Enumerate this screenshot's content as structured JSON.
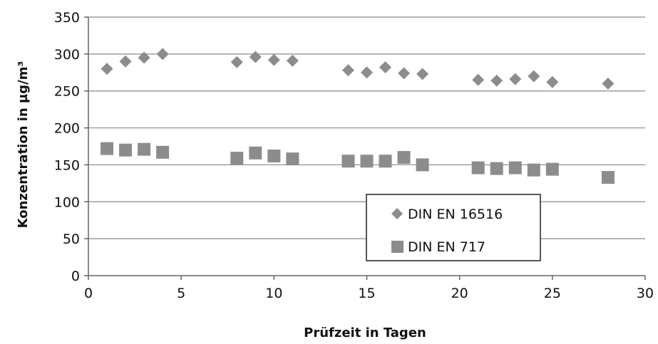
{
  "chart_data": {
    "type": "scatter",
    "title": "",
    "xlabel": "Prüfzeit in Tagen",
    "ylabel": "Konzentration in µg/m³",
    "xlim": [
      0,
      30
    ],
    "ylim": [
      0,
      350
    ],
    "xticks": [
      0,
      5,
      10,
      15,
      20,
      25,
      30
    ],
    "yticks": [
      0,
      50,
      100,
      150,
      200,
      250,
      300,
      350
    ],
    "grid": "horizontal",
    "legend_position": "lower-right",
    "series": [
      {
        "name": "DIN EN 16516",
        "marker": "diamond",
        "color": "#8c8c8c",
        "x": [
          1,
          2,
          3,
          4,
          8,
          9,
          10,
          11,
          14,
          15,
          16,
          17,
          18,
          21,
          22,
          23,
          24,
          25,
          28
        ],
        "y": [
          280,
          290,
          295,
          300,
          289,
          296,
          292,
          291,
          278,
          275,
          282,
          274,
          273,
          265,
          264,
          266,
          270,
          262,
          260
        ]
      },
      {
        "name": "DIN EN 717",
        "marker": "square",
        "color": "#8c8c8c",
        "x": [
          1,
          2,
          3,
          4,
          8,
          9,
          10,
          11,
          14,
          15,
          16,
          17,
          18,
          21,
          22,
          23,
          24,
          25,
          28
        ],
        "y": [
          172,
          170,
          171,
          167,
          159,
          166,
          162,
          158,
          155,
          155,
          155,
          160,
          150,
          146,
          145,
          146,
          143,
          144,
          133
        ]
      }
    ]
  }
}
